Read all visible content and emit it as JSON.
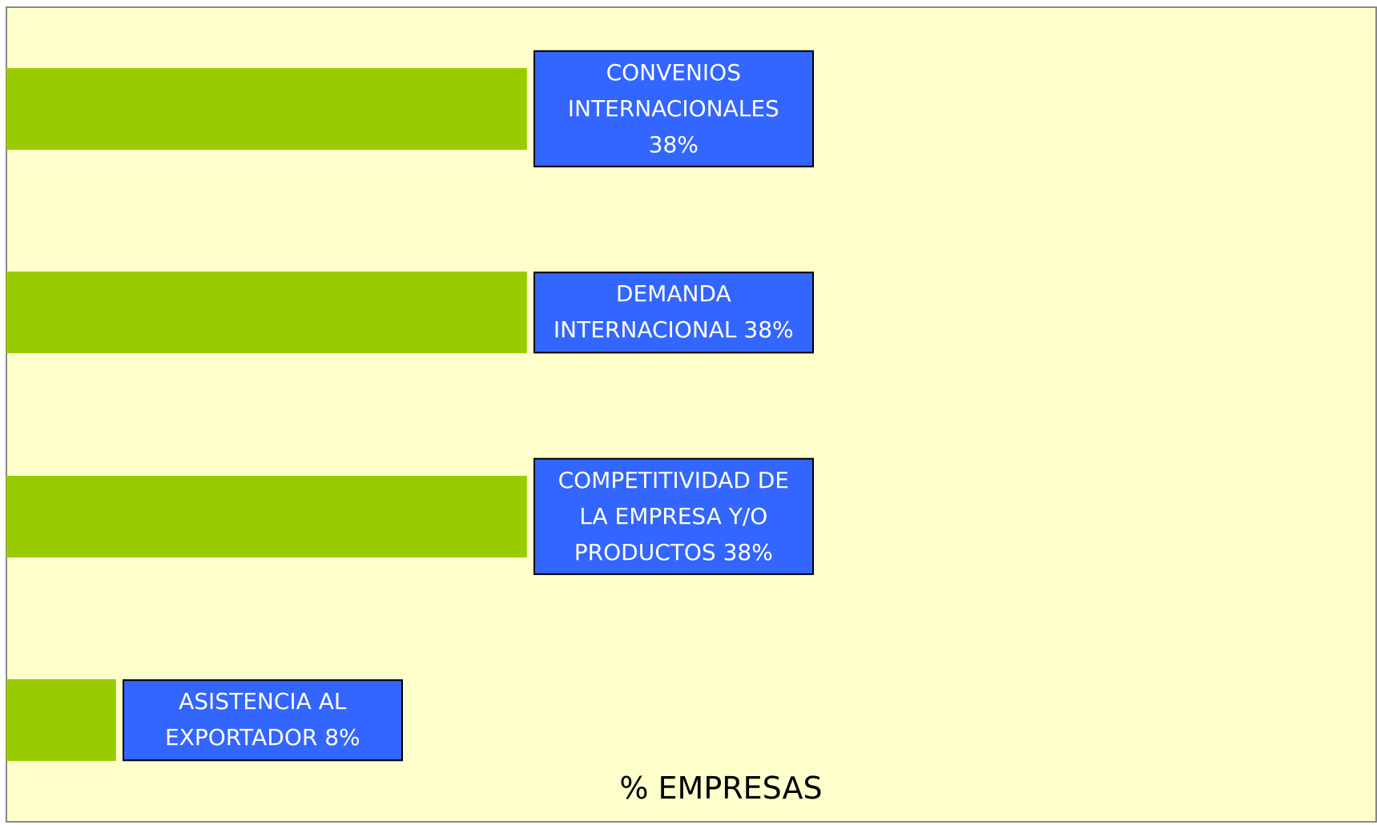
{
  "chart_data": {
    "type": "barh",
    "values": [
      38,
      38,
      38,
      8
    ],
    "value_labels": [
      "CONVENIOS INTERNACIONALES 38%",
      "DEMANDA INTERNACIONAL 38%",
      "COMPETITIVIDAD DE LA EMPRESA Y/O PRODUCTOS 38%",
      "ASISTENCIA AL EXPORTADOR 8%"
    ],
    "color": "#99cc00",
    "label_color": "#3366ff",
    "background": "#ffffcc",
    "xlim": [
      0,
      100
    ],
    "x_label": "% EMPRESAS"
  }
}
